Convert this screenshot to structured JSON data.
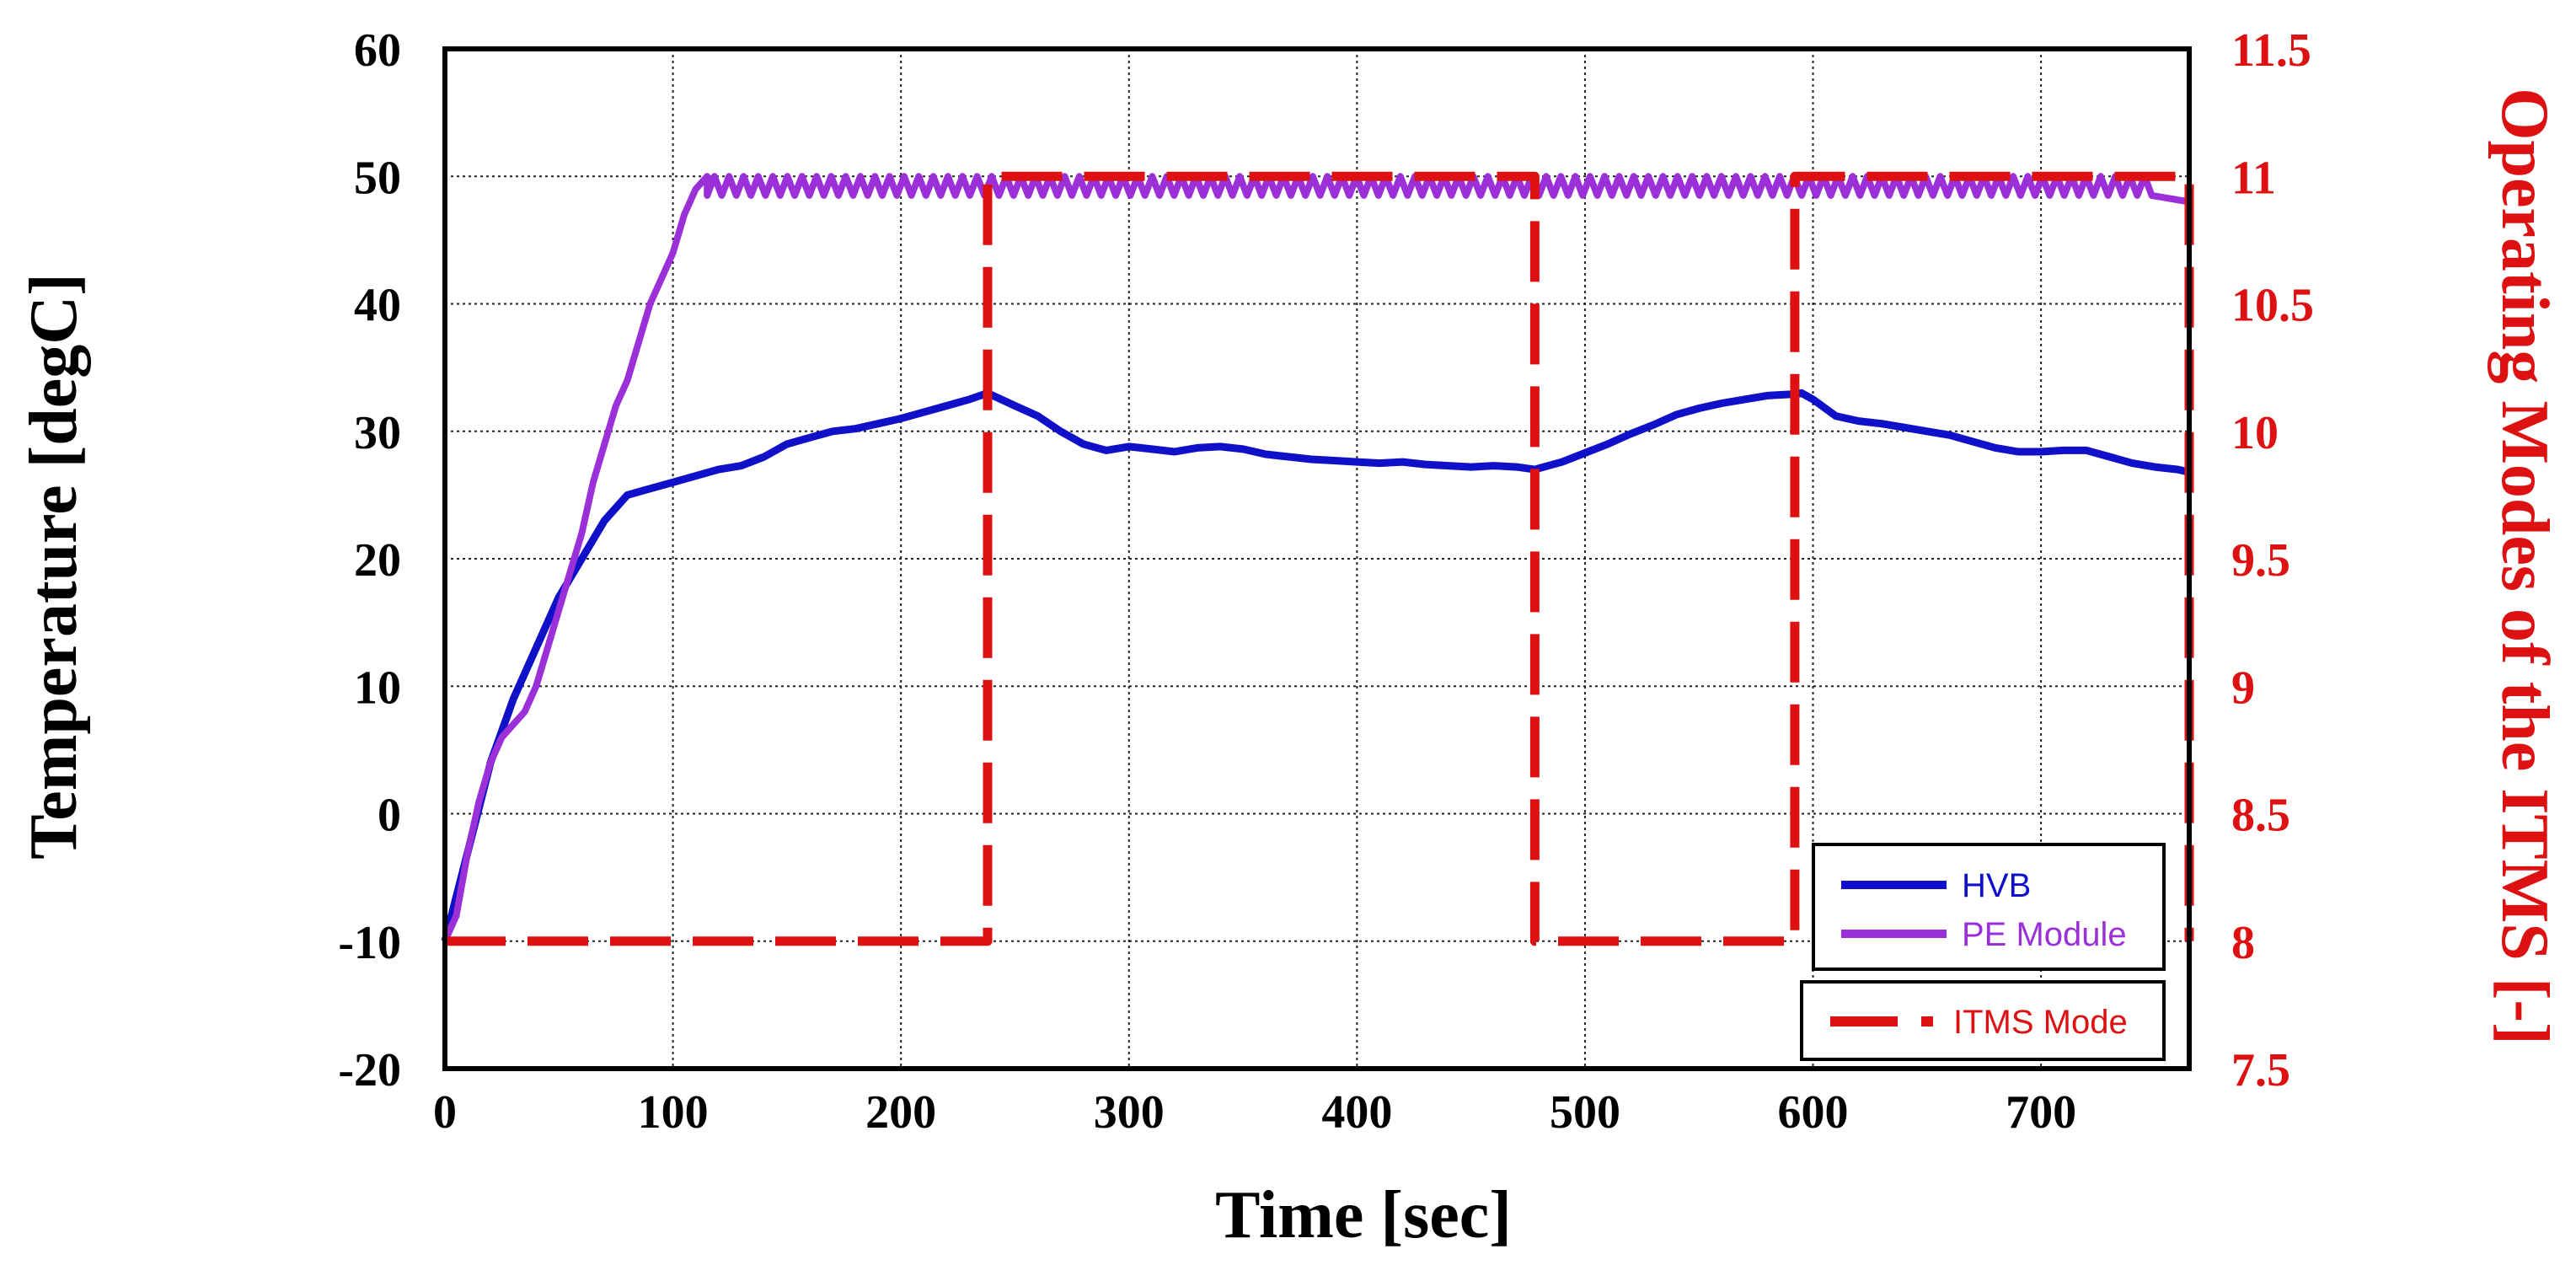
{
  "chart_data": {
    "type": "line",
    "xlabel": "Time [sec]",
    "ylabel": "Temperature [degC]",
    "y2label": "Operating Modes of the ITMS [-]",
    "xlim": [
      0,
      765
    ],
    "ylim": [
      -20,
      60
    ],
    "y2lim": [
      7.5,
      11.5
    ],
    "x_ticks": [
      "0",
      "100",
      "200",
      "300",
      "400",
      "500",
      "600",
      "700"
    ],
    "y_ticks": [
      "-20",
      "-10",
      "0",
      "10",
      "20",
      "30",
      "40",
      "50",
      "60"
    ],
    "y2_ticks": [
      "7.5",
      "8",
      "8.5",
      "9",
      "9.5",
      "10",
      "10.5",
      "11",
      "11.5"
    ],
    "grid": true,
    "legend_position": "bottom-right",
    "colors": {
      "hvb": "#1010c8",
      "pe": "#9b30d9",
      "itms": "#dd1111",
      "right_axis": "#dd1111"
    },
    "series": [
      {
        "name": "HVB",
        "axis": "left",
        "style": "solid",
        "x": [
          0,
          10,
          20,
          30,
          40,
          50,
          60,
          70,
          80,
          90,
          100,
          110,
          120,
          130,
          140,
          150,
          160,
          170,
          180,
          190,
          200,
          210,
          220,
          230,
          238,
          250,
          260,
          270,
          280,
          290,
          300,
          310,
          320,
          330,
          340,
          350,
          360,
          370,
          380,
          390,
          400,
          410,
          420,
          430,
          440,
          450,
          460,
          470,
          478,
          490,
          500,
          510,
          520,
          530,
          540,
          550,
          560,
          570,
          580,
          590,
          595,
          600,
          610,
          620,
          630,
          640,
          650,
          660,
          670,
          680,
          690,
          700,
          710,
          720,
          730,
          740,
          750,
          760,
          765
        ],
        "values": [
          -10,
          -3,
          4,
          9,
          13,
          17,
          20,
          23,
          25,
          25.5,
          26,
          26.5,
          27,
          27.3,
          28,
          29,
          29.5,
          30,
          30.2,
          30.6,
          31,
          31.5,
          32,
          32.5,
          33,
          32,
          31.2,
          30,
          29,
          28.5,
          28.8,
          28.6,
          28.4,
          28.7,
          28.8,
          28.6,
          28.2,
          28,
          27.8,
          27.7,
          27.6,
          27.5,
          27.6,
          27.4,
          27.3,
          27.2,
          27.3,
          27.2,
          27,
          27.6,
          28.3,
          29,
          29.8,
          30.5,
          31.3,
          31.8,
          32.2,
          32.5,
          32.8,
          32.9,
          33,
          32.5,
          31.2,
          30.8,
          30.6,
          30.3,
          30,
          29.7,
          29.2,
          28.7,
          28.4,
          28.4,
          28.5,
          28.5,
          28,
          27.5,
          27.2,
          27,
          26.8
        ]
      },
      {
        "name": "PE Module",
        "axis": "left",
        "style": "solid",
        "x": [
          0,
          5,
          10,
          15,
          20,
          25,
          30,
          35,
          40,
          45,
          50,
          55,
          60,
          65,
          70,
          75,
          80,
          85,
          90,
          95,
          100,
          105,
          110,
          115,
          750,
          765
        ],
        "values": [
          -10,
          -8,
          -3,
          1,
          4,
          6,
          7,
          8,
          10,
          13,
          16,
          19,
          22,
          26,
          29,
          32,
          34,
          37,
          40,
          42,
          44,
          47,
          49,
          50,
          50,
          48
        ],
        "oscillation_from_x": 115,
        "oscillation_range": [
          48.5,
          50
        ]
      },
      {
        "name": "ITMS Mode",
        "axis": "right",
        "style": "dashed",
        "x": [
          0,
          238,
          238,
          478,
          478,
          592,
          592,
          765,
          765
        ],
        "values": [
          8,
          8,
          11,
          11,
          8,
          8,
          11,
          11,
          8
        ]
      }
    ]
  }
}
